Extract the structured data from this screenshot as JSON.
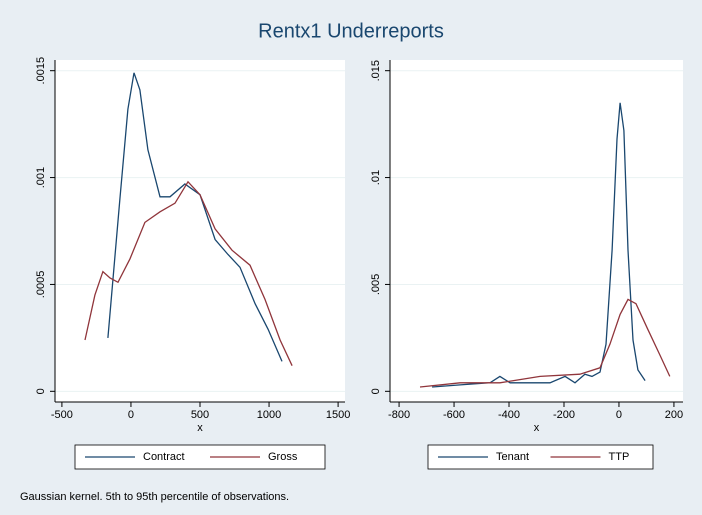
{
  "title": "Rentx1 Underreports",
  "note": "Gaussian kernel. 5th to 95th percentile of observations.",
  "chart_data": [
    {
      "type": "line",
      "xlabel": "x",
      "xlim": [
        -550,
        1550
      ],
      "xticks": [
        -500,
        0,
        500,
        1000,
        1500
      ],
      "ylim": [
        -5e-05,
        0.00155
      ],
      "yticks": [
        0,
        {
          "value": 0.0005,
          "label": ".0005"
        },
        {
          "value": 0.001,
          "label": ".001"
        },
        {
          "value": 0.0015,
          "label": ".0015"
        }
      ],
      "grid": true,
      "series": [
        {
          "name": "Contract",
          "color": "#1a476f",
          "x": [
            -167,
            -80,
            -22,
            22,
            65,
            123,
            210,
            283,
            391,
            500,
            609,
            703,
            790,
            899,
            993,
            1094
          ],
          "values": [
            0.00025,
            0.0009,
            0.00132,
            0.00149,
            0.00141,
            0.00113,
            0.00091,
            0.00091,
            0.00097,
            0.00092,
            0.00071,
            0.00064,
            0.00058,
            0.00041,
            0.00029,
            0.00014
          ]
        },
        {
          "name": "Gross",
          "color": "#90353b",
          "x": [
            -333,
            -261,
            -203,
            -152,
            -94,
            -7,
            101,
            210,
            319,
            413,
            500,
            609,
            732,
            862,
            971,
            1080,
            1167
          ],
          "values": [
            0.00024,
            0.00045,
            0.00056,
            0.00053,
            0.00051,
            0.00062,
            0.00079,
            0.00084,
            0.00088,
            0.00098,
            0.00092,
            0.00076,
            0.00066,
            0.00059,
            0.00043,
            0.00024,
            0.00012
          ]
        }
      ]
    },
    {
      "type": "line",
      "xlabel": "x",
      "xlim": [
        -833,
        233
      ],
      "xticks": [
        -800,
        -600,
        -400,
        -200,
        0,
        200
      ],
      "ylim": [
        -0.0005,
        0.0155
      ],
      "yticks": [
        0,
        {
          "value": 0.005,
          "label": ".005"
        },
        {
          "value": 0.01,
          "label": ".01"
        },
        {
          "value": 0.015,
          "label": ".015"
        }
      ],
      "grid": true,
      "series": [
        {
          "name": "Tenant",
          "color": "#1a476f",
          "x": [
            -680,
            -578,
            -469,
            -433,
            -396,
            -251,
            -196,
            -160,
            -124,
            -98,
            -69,
            -47,
            -25,
            -7,
            4,
            18,
            33,
            51,
            69,
            95
          ],
          "values": [
            0.0002,
            0.0003,
            0.0004,
            0.0007,
            0.0004,
            0.0004,
            0.0007,
            0.0004,
            0.0008,
            0.0007,
            0.0009,
            0.0022,
            0.0066,
            0.0118,
            0.0135,
            0.0122,
            0.0066,
            0.0024,
            0.001,
            0.0005
          ]
        },
        {
          "name": "TTP",
          "color": "#90353b",
          "x": [
            -724,
            -578,
            -433,
            -287,
            -142,
            -69,
            -33,
            4,
            33,
            62,
            105,
            149,
            185
          ],
          "values": [
            0.0002,
            0.0004,
            0.0004,
            0.0007,
            0.0008,
            0.0011,
            0.0022,
            0.0036,
            0.0043,
            0.0041,
            0.0029,
            0.0017,
            0.0007
          ]
        }
      ]
    }
  ]
}
